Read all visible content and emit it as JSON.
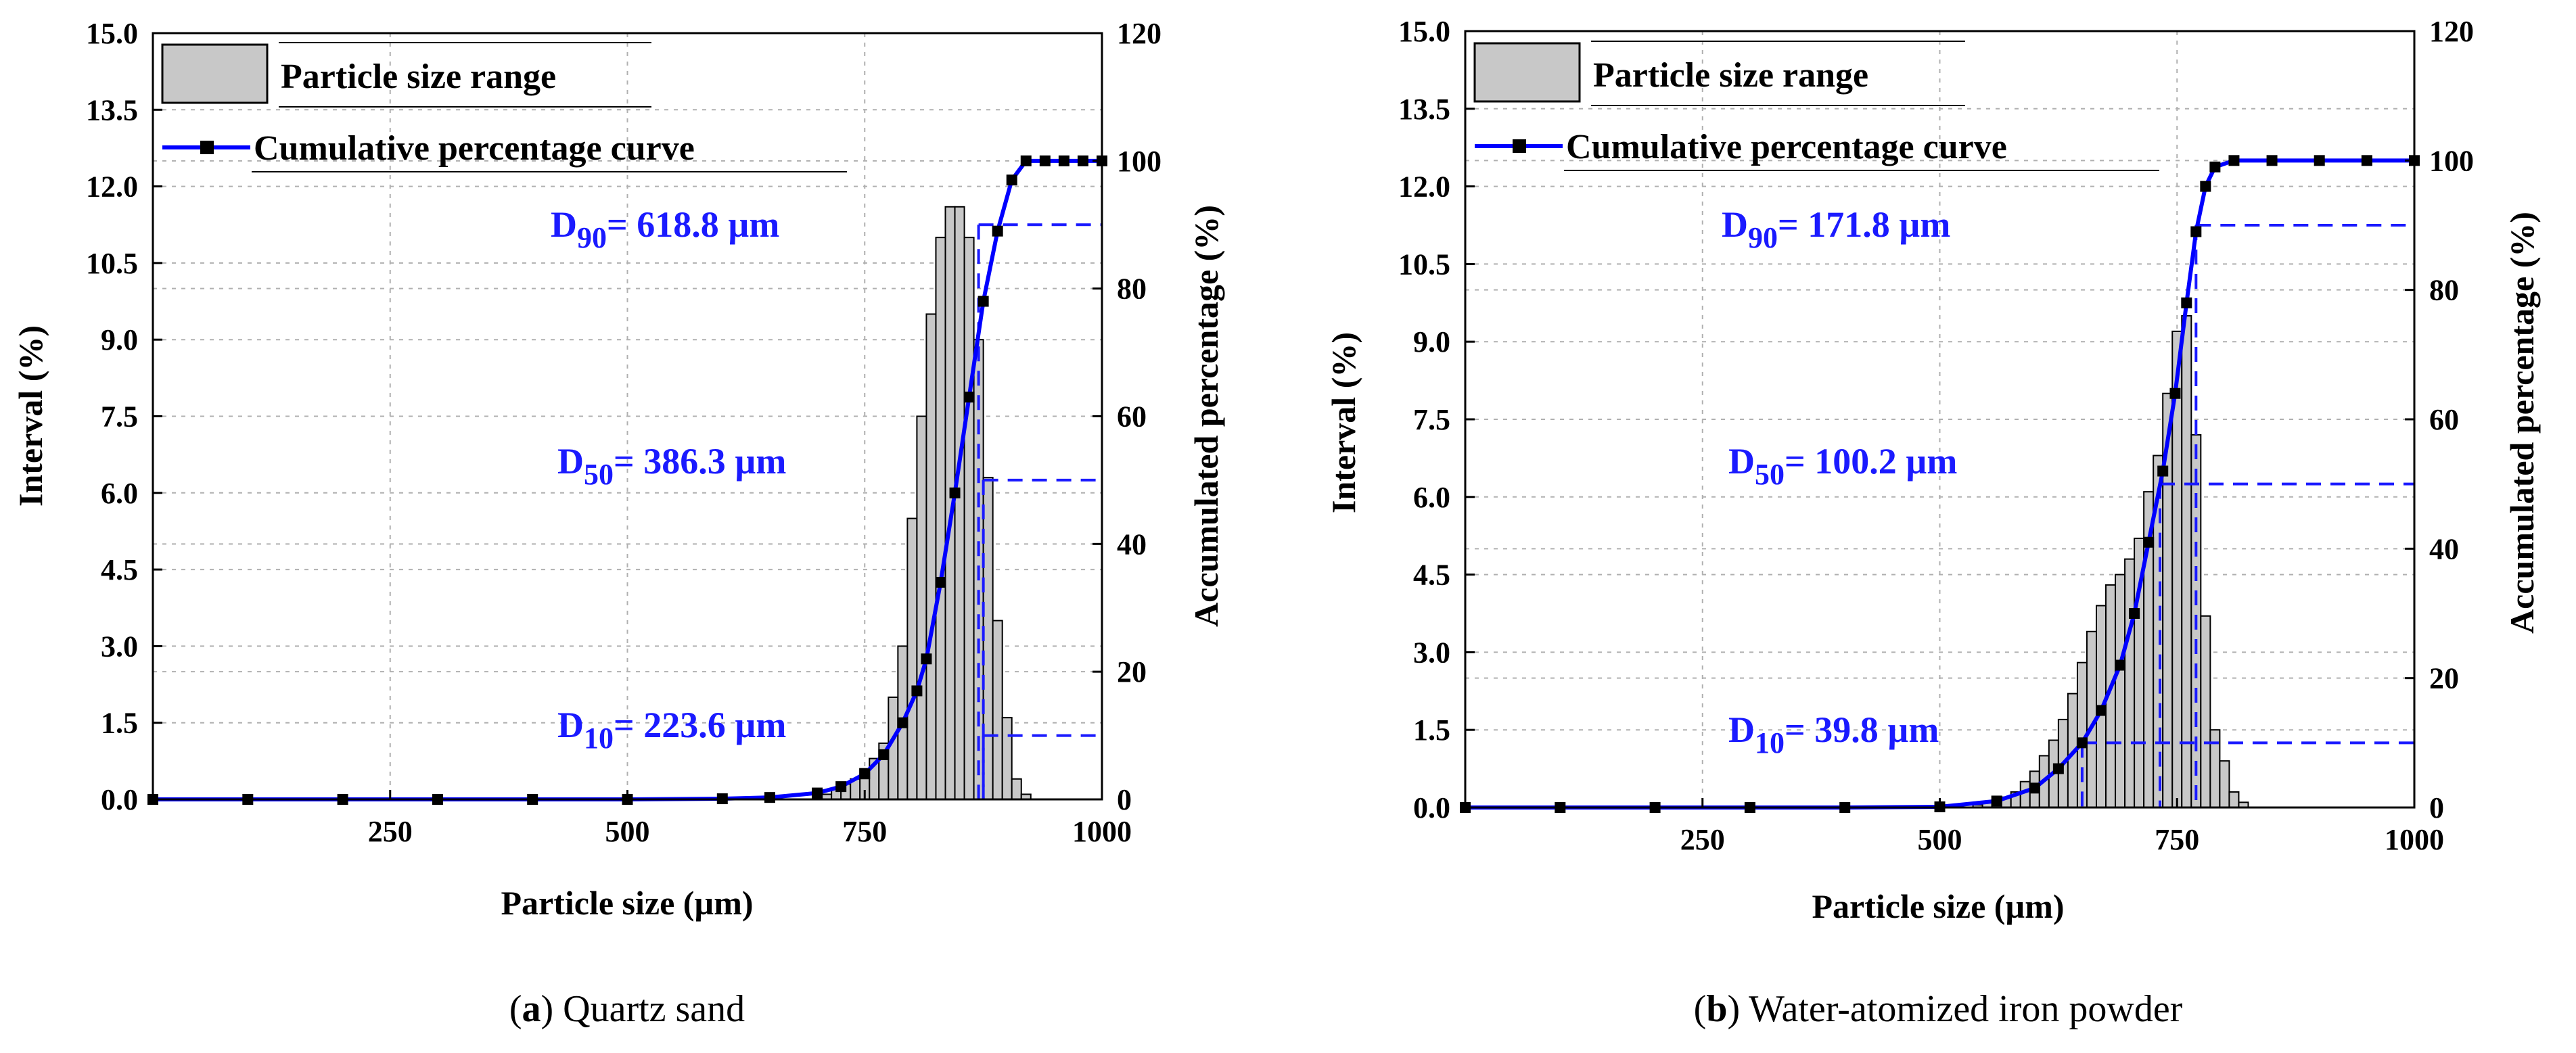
{
  "colors": {
    "curve": "#0000ff",
    "bar_fill": "#c8c8c8",
    "bar_stroke": "#000000",
    "annotation": "#1a1aff"
  },
  "chart_data": [
    {
      "panel": "a",
      "caption_letter": "a",
      "caption_text": "Quartz sand",
      "type": "bar",
      "xlabel": "Particle size (µm)",
      "ylabel": "Interval (%)",
      "y2label": "Accumulated percentage (%)",
      "xlim": [
        0,
        1000
      ],
      "ylim": [
        0,
        15
      ],
      "y2lim": [
        0,
        120
      ],
      "xticks": [
        "250",
        "500",
        "750",
        "1000"
      ],
      "xtick_values": [
        250,
        500,
        750,
        1000
      ],
      "yticks": [
        "0.0",
        "1.5",
        "3.0",
        "4.5",
        "6.0",
        "7.5",
        "9.0",
        "10.5",
        "12.0",
        "13.5",
        "15.0"
      ],
      "y2ticks": [
        "0",
        "20",
        "40",
        "60",
        "80",
        "100",
        "120"
      ],
      "grid": true,
      "legend": {
        "position": "top-left",
        "items": [
          "Particle size range",
          "Cumulative percentage curve"
        ]
      },
      "bars": {
        "name": "Particle size range",
        "x": [
          700,
          710,
          720,
          730,
          740,
          750,
          760,
          770,
          780,
          790,
          800,
          810,
          820,
          830,
          840,
          850,
          860,
          870,
          880,
          890,
          900,
          910,
          920
        ],
        "values": [
          0.05,
          0.1,
          0.2,
          0.3,
          0.4,
          0.6,
          0.8,
          1.1,
          2.0,
          3.0,
          5.5,
          7.5,
          9.5,
          11.0,
          11.6,
          11.6,
          11.0,
          9.0,
          6.3,
          3.5,
          1.6,
          0.4,
          0.1
        ]
      },
      "curve": {
        "name": "Cumulative percentage curve",
        "x": [
          0,
          100,
          200,
          300,
          400,
          500,
          600,
          650,
          700,
          725,
          750,
          770,
          790,
          805,
          815,
          830,
          845,
          860,
          875,
          890,
          905,
          920,
          940,
          960,
          980,
          1000
        ],
        "values": [
          0,
          0,
          0,
          0,
          0,
          0,
          0.1,
          0.3,
          1,
          2,
          4,
          7,
          12,
          17,
          22,
          34,
          48,
          63,
          78,
          89,
          97,
          100,
          100,
          100,
          100,
          100
        ]
      },
      "annotations": [
        {
          "sub": "90",
          "text": "= 618.8 µm",
          "cum": 90,
          "x": 870
        },
        {
          "sub": "50",
          "text": "= 386.3 µm",
          "cum": 50,
          "x": 875
        },
        {
          "sub": "10",
          "text": "= 223.6 µm",
          "cum": 10,
          "x": 875
        }
      ]
    },
    {
      "panel": "b",
      "caption_letter": "b",
      "caption_text": "Water-atomized iron powder",
      "type": "bar",
      "xlabel": "Particle size (µm)",
      "ylabel": "Interval (%)",
      "y2label": "Accumulated percentage (%)",
      "xlim": [
        0,
        1000
      ],
      "ylim": [
        0,
        15
      ],
      "y2lim": [
        0,
        120
      ],
      "xticks": [
        "250",
        "500",
        "750",
        "1000"
      ],
      "xtick_values": [
        250,
        500,
        750,
        1000
      ],
      "yticks": [
        "0.0",
        "1.5",
        "3.0",
        "4.5",
        "6.0",
        "7.5",
        "9.0",
        "10.5",
        "12.0",
        "13.5",
        "15.0"
      ],
      "y2ticks": [
        "0",
        "20",
        "40",
        "60",
        "80",
        "100",
        "120"
      ],
      "grid": true,
      "legend": {
        "position": "top-left",
        "items": [
          "Particle size range",
          "Cumulative percentage curve"
        ]
      },
      "bars": {
        "name": "Particle size range",
        "x": [
          540,
          550,
          560,
          570,
          580,
          590,
          600,
          610,
          620,
          630,
          640,
          650,
          660,
          670,
          680,
          690,
          700,
          710,
          720,
          730,
          740,
          750,
          760,
          770,
          780,
          790,
          800,
          810,
          820
        ],
        "values": [
          0.05,
          0.1,
          0.15,
          0.2,
          0.3,
          0.5,
          0.7,
          1.0,
          1.3,
          1.7,
          2.2,
          2.8,
          3.4,
          3.9,
          4.3,
          4.5,
          4.8,
          5.2,
          6.1,
          6.8,
          8.0,
          9.2,
          9.5,
          7.2,
          3.7,
          1.5,
          0.9,
          0.3,
          0.1
        ]
      },
      "curve": {
        "name": "Cumulative percentage curve",
        "x": [
          0,
          100,
          200,
          300,
          400,
          500,
          560,
          600,
          625,
          650,
          670,
          690,
          705,
          720,
          735,
          748,
          760,
          770,
          780,
          790,
          810,
          850,
          900,
          950,
          1000
        ],
        "values": [
          0,
          0,
          0,
          0,
          0,
          0.1,
          1,
          3,
          6,
          10,
          15,
          22,
          30,
          41,
          52,
          64,
          78,
          89,
          96,
          99,
          100,
          100,
          100,
          100,
          100
        ]
      },
      "annotations": [
        {
          "sub": "90",
          "text": "= 171.8 µm",
          "cum": 90,
          "x": 770
        },
        {
          "sub": "50",
          "text": "= 100.2 µm",
          "cum": 50,
          "x": 732
        },
        {
          "sub": "10",
          "text": "= 39.8 µm",
          "cum": 10,
          "x": 650
        }
      ]
    }
  ]
}
